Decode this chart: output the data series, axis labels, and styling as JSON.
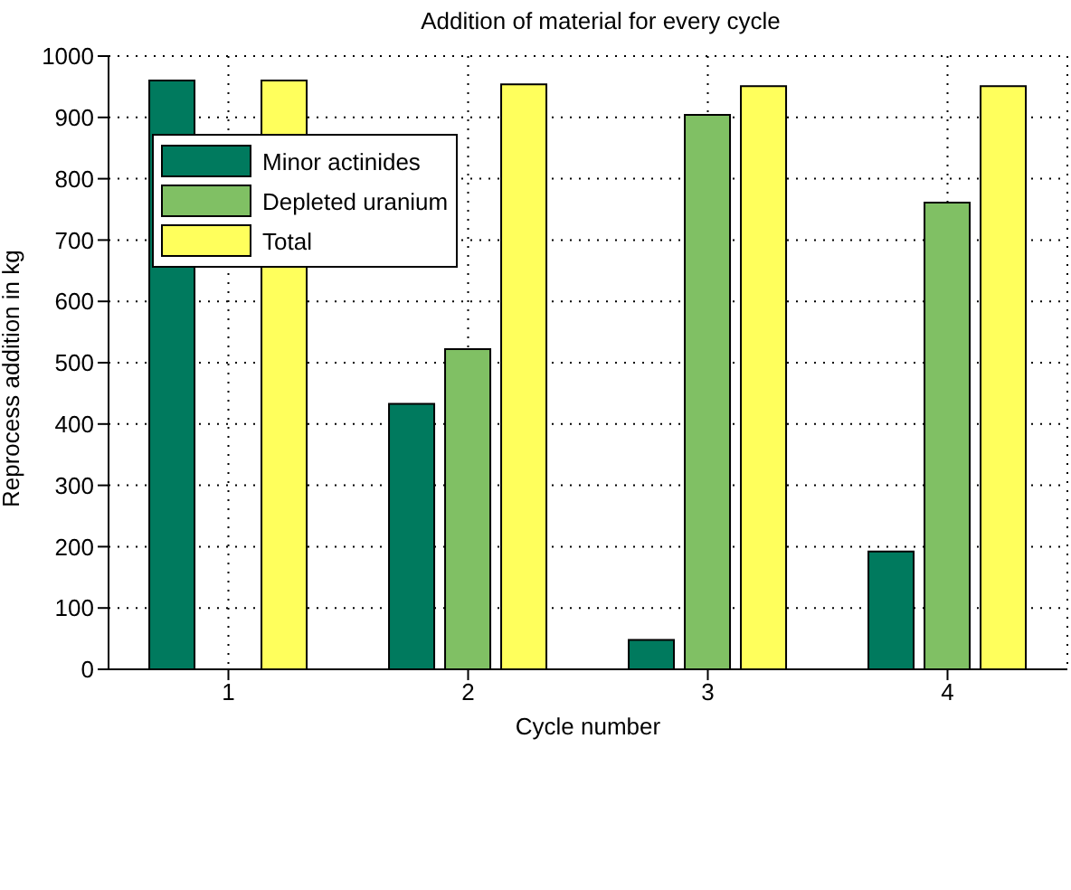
{
  "chart_data": {
    "type": "bar",
    "title": "Addition of material for every cycle",
    "xlabel": "Cycle number",
    "ylabel": "Reprocess addition in kg",
    "categories": [
      "1",
      "2",
      "3",
      "4"
    ],
    "series": [
      {
        "name": "Minor actinides",
        "color": "#007a5e",
        "values": [
          960,
          433,
          48,
          192
        ]
      },
      {
        "name": "Depleted uranium",
        "color": "#80c064",
        "values": [
          0,
          522,
          904,
          761
        ]
      },
      {
        "name": "Total",
        "color": "#ffff5c",
        "values": [
          960,
          954,
          951,
          951
        ]
      }
    ],
    "ylim": [
      0,
      1000
    ],
    "yticks": [
      0,
      100,
      200,
      300,
      400,
      500,
      600,
      700,
      800,
      900,
      1000
    ],
    "grid": true,
    "legend": "top left"
  }
}
